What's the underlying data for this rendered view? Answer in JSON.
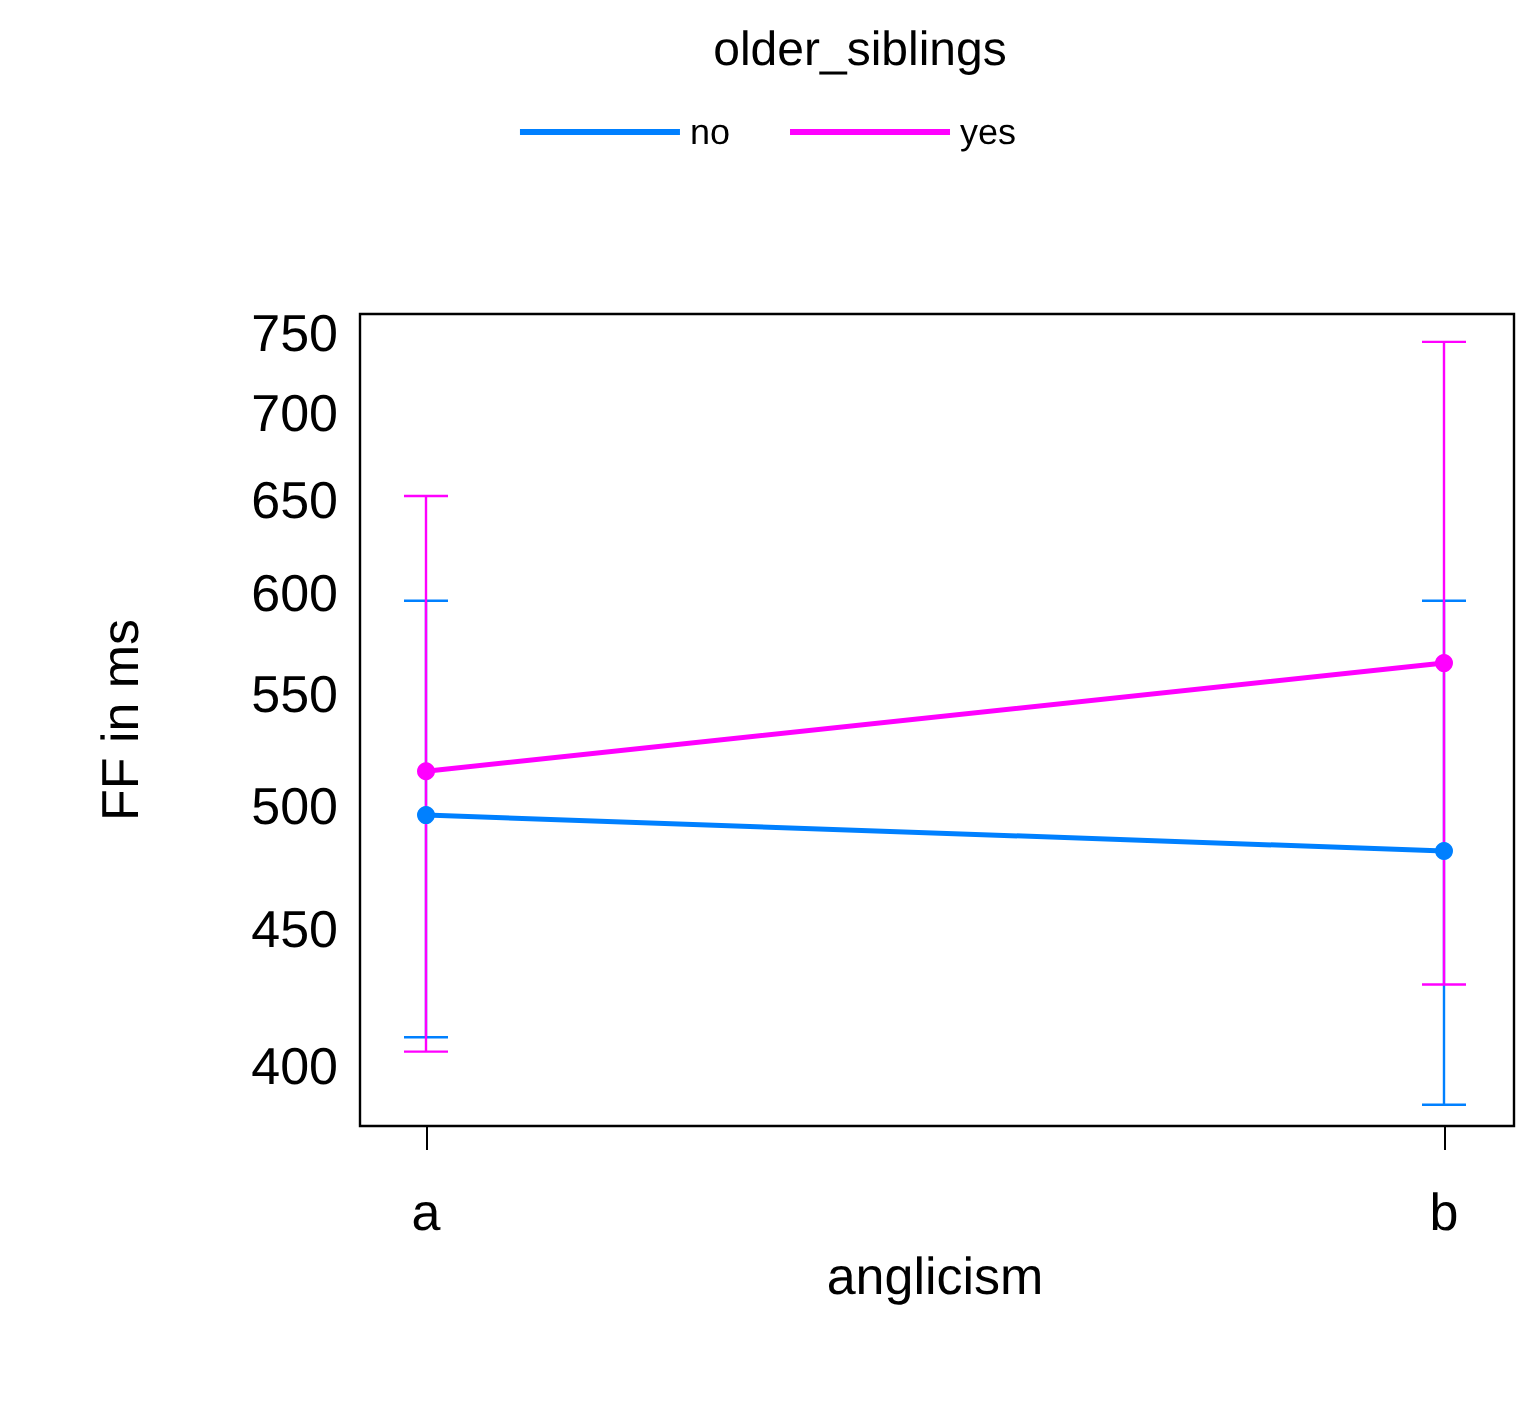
{
  "chart_data": {
    "type": "line",
    "legend_title": "older_siblings",
    "xlabel": "anglicism",
    "ylabel": "FF in ms",
    "categories": [
      "a",
      "b"
    ],
    "series": [
      {
        "name": "no",
        "color": "#0080ff",
        "values": [
          496,
          481
        ],
        "errors": [
          [
            410,
            596
          ],
          [
            387,
            596
          ]
        ]
      },
      {
        "name": "yes",
        "color": "#ff00ff",
        "values": [
          515,
          565
        ],
        "errors": [
          [
            405,
            652
          ],
          [
            429,
            744
          ]
        ]
      }
    ],
    "log": true,
    "ylim": [
      380,
      762
    ],
    "yticks": [
      400,
      450,
      500,
      550,
      600,
      650,
      700,
      750
    ],
    "grid": false,
    "legend": "top",
    "marker": "circle",
    "line_style": "solid"
  }
}
